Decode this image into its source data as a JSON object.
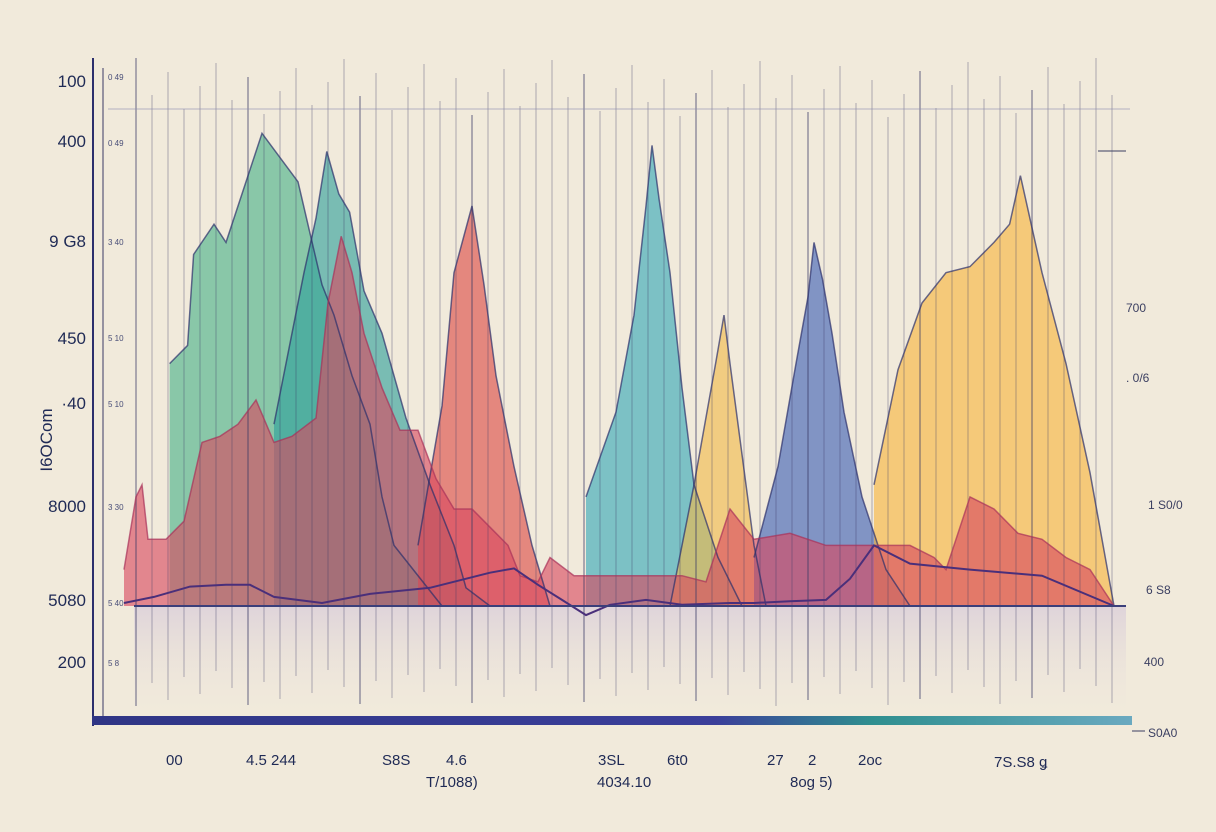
{
  "chart_data": {
    "type": "area",
    "title": "",
    "ylabel": "I6OCom",
    "xlabel": "",
    "legend": "none",
    "grid": "vertical",
    "xlim": [
      0,
      100
    ],
    "ylim": [
      0,
      100
    ],
    "left_ticks": [
      "100",
      "400",
      "9 G8",
      "450",
      "·40",
      "8000",
      "5080",
      "200"
    ],
    "left_minor_ticks": [
      "0 49",
      "0 49",
      "3 40",
      "5 10",
      "5 10",
      "3 30",
      "5 40",
      "5 8"
    ],
    "right_ticks": [
      "700",
      ". 0/6",
      "1 S0/0",
      "6 S8",
      "400",
      "S0A0"
    ],
    "x_ticks": [
      "00",
      "4.5 244",
      "S8S",
      "4.6",
      "T/1088)",
      "3SL",
      "4034.10",
      "6t0",
      "27",
      "2",
      "8og 5)",
      "2oc",
      "7S.S8 ǥ"
    ],
    "series": [
      {
        "color": "#48b289",
        "x": [
          13.3,
          14.8,
          15.3,
          17,
          18,
          21,
          24,
          26,
          27,
          28.5,
          30,
          31,
          32,
          36
        ],
        "y": [
          40,
          43,
          58,
          63,
          60,
          78,
          70,
          53,
          48,
          38,
          30,
          18,
          10,
          0
        ]
      },
      {
        "color": "#2f9f9b",
        "x": [
          22,
          24.5,
          25.5,
          26.4,
          27.4,
          28.3,
          29.5,
          31,
          33,
          35,
          37,
          38,
          40
        ],
        "y": [
          30,
          55,
          64,
          75,
          68,
          65,
          52,
          45,
          31,
          20,
          10,
          3,
          0
        ]
      },
      {
        "color": "#dc4b45",
        "x": [
          34,
          36,
          37,
          38.5,
          39.5,
          40.5,
          42,
          43.5,
          45
        ],
        "y": [
          10,
          33,
          55,
          66,
          53,
          38,
          23,
          10,
          0
        ]
      },
      {
        "color": "#34a8b8",
        "x": [
          48,
          50.5,
          52,
          53,
          53.5,
          54.1,
          55,
          56,
          57,
          59,
          61
        ],
        "y": [
          18,
          32,
          48,
          66,
          76,
          67,
          55,
          36,
          20,
          8,
          0
        ]
      },
      {
        "color": "#f1b94a",
        "x": [
          55,
          57,
          58.8,
          59.5,
          60,
          61,
          62,
          63
        ],
        "y": [
          0,
          20,
          40,
          48,
          40,
          25,
          10,
          0
        ]
      },
      {
        "color": "#3b5fb6",
        "x": [
          62,
          64,
          65.5,
          66.5,
          67,
          67.7,
          68.5,
          69.5,
          71,
          73,
          75
        ],
        "y": [
          8,
          23,
          40,
          51,
          60,
          54,
          45,
          32,
          18,
          6,
          0
        ]
      },
      {
        "color": "#f7b43e",
        "x": [
          72,
          74,
          76,
          78,
          80,
          82,
          83.3,
          84.2,
          86,
          88,
          90,
          92
        ],
        "y": [
          20,
          39,
          50,
          55,
          56,
          60,
          63,
          71,
          55,
          40,
          22,
          0
        ]
      },
      {
        "color": "#d8485f",
        "x": [
          9.5,
          10.5,
          11,
          11.5,
          12,
          13,
          14.5,
          16,
          17.5,
          19,
          20.5,
          22,
          23.5,
          25.5,
          26.5,
          27.6,
          28.5,
          29.5,
          31,
          32.5,
          34,
          35.5,
          37,
          38.5,
          40,
          41.5,
          42.5,
          44,
          45,
          47,
          49,
          51,
          52,
          53,
          54,
          55,
          56,
          58,
          60,
          62,
          65,
          68,
          71,
          73,
          75,
          77,
          78,
          80,
          82,
          84,
          86,
          88,
          90,
          92
        ],
        "y": [
          6,
          18,
          20,
          11,
          11,
          11,
          14,
          27,
          28,
          30,
          34,
          27,
          28,
          31,
          50,
          61,
          55,
          45,
          36,
          29,
          29,
          21,
          16,
          16,
          13,
          10,
          5,
          4,
          8,
          5,
          5,
          5,
          5,
          5,
          5,
          5,
          5,
          4,
          16,
          11,
          12,
          10,
          10,
          10,
          10,
          8,
          6,
          18,
          16,
          12,
          11,
          8,
          6,
          0
        ]
      }
    ],
    "baseline": {
      "x": [
        9.5,
        12,
        15,
        18,
        20,
        22,
        26,
        30,
        35,
        40,
        42,
        44,
        46,
        48,
        50,
        53,
        56,
        60,
        62,
        65,
        68,
        70,
        72,
        75,
        80,
        86,
        92
      ],
      "y": [
        0.5,
        1.5,
        3.2,
        3.5,
        3.5,
        1.5,
        0.5,
        2,
        3,
        5.5,
        6.2,
        3.5,
        1,
        -1.5,
        0.2,
        1,
        0.2,
        0.5,
        0.5,
        0.8,
        1,
        4.5,
        10,
        7,
        6,
        5,
        0
      ]
    },
    "colors": {
      "background": "#f1eadb",
      "axis": "#2c2f6d",
      "grid": "#3a3b66",
      "bottom_bar": "#2f3585"
    }
  }
}
